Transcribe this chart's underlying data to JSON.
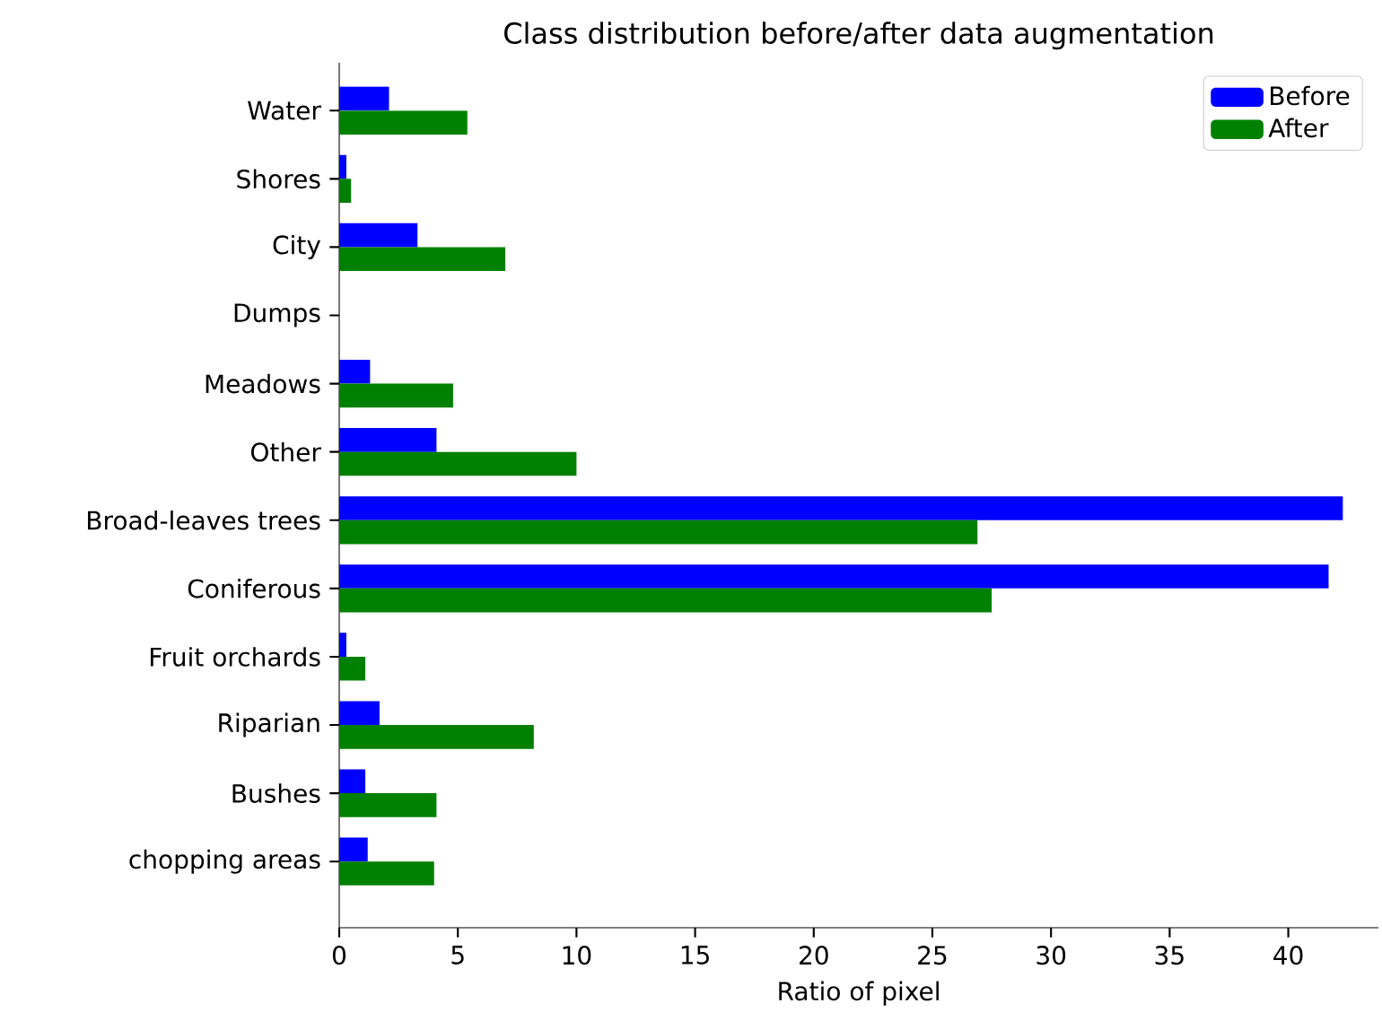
{
  "chart_data": {
    "type": "bar",
    "orientation": "horizontal",
    "title": "Class distribution before/after data augmentation",
    "xlabel": "Ratio of pixel",
    "categories": [
      "Water",
      "Shores",
      "City",
      "Dumps",
      "Meadows",
      "Other",
      "Broad-leaves trees",
      "Coniferous",
      "Fruit orchards",
      "Riparian",
      "Bushes",
      "chopping areas"
    ],
    "series": [
      {
        "name": "Before",
        "color": "#0000ff",
        "values": [
          2.1,
          0.3,
          3.3,
          0,
          1.3,
          4.1,
          42.3,
          41.7,
          0.3,
          1.7,
          1.1,
          1.2
        ]
      },
      {
        "name": "After",
        "color": "#008000",
        "values": [
          5.4,
          0.5,
          7.0,
          0,
          4.8,
          10.0,
          26.9,
          27.5,
          1.1,
          8.2,
          4.1,
          4.0
        ]
      }
    ],
    "xlim": [
      0,
      43.8
    ],
    "xticks": [
      0,
      5,
      10,
      15,
      20,
      25,
      30,
      35,
      40
    ],
    "grid": false,
    "legend": "top right"
  }
}
